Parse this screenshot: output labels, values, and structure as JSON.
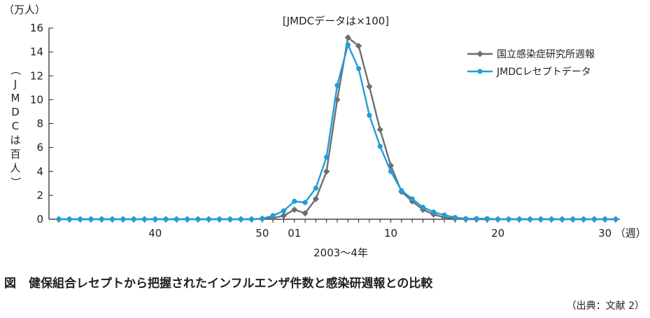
{
  "chart_data": {
    "type": "line",
    "annotation": "[JMDCデータは×100]",
    "y_unit_label": "（万人）",
    "y_secondary_label": "（JMDCは百人）",
    "x_axis_label": "2003〜4年",
    "x_unit_label": "（週）",
    "ylim": [
      0,
      16
    ],
    "y_ticks": [
      "0",
      "2",
      "4",
      "6",
      "8",
      "10",
      "12",
      "14",
      "16"
    ],
    "x_tick_labels": [
      {
        "week_index": 9,
        "label": "40"
      },
      {
        "week_index": 19,
        "label": "50"
      },
      {
        "week_index": 22,
        "label": "01"
      },
      {
        "week_index": 31,
        "label": "10"
      },
      {
        "week_index": 41,
        "label": "20"
      },
      {
        "week_index": 51,
        "label": "30"
      }
    ],
    "x_count": 53,
    "grid": false,
    "legend_position": "top-right",
    "series": [
      {
        "name": "国立感染症研究所週報",
        "color": "#6d6e71",
        "marker": "diamond",
        "values": [
          0,
          0,
          0,
          0,
          0,
          0,
          0,
          0,
          0,
          0,
          0,
          0,
          0,
          0,
          0,
          0,
          0,
          0,
          0,
          0.05,
          0.1,
          0.3,
          0.8,
          0.5,
          1.7,
          4.0,
          10.0,
          15.2,
          14.5,
          11.1,
          7.5,
          4.5,
          2.3,
          1.5,
          0.8,
          0.4,
          0.15,
          0.05,
          0,
          0,
          0,
          0,
          0,
          0,
          0,
          0,
          0,
          0,
          0,
          0,
          0,
          0,
          0
        ]
      },
      {
        "name": "JMDCレセプトデータ",
        "color": "#1f9ed8",
        "marker": "circle",
        "values": [
          0,
          0,
          0,
          0,
          0,
          0,
          0,
          0,
          0,
          0,
          0,
          0,
          0,
          0,
          0,
          0,
          0,
          0,
          0,
          0.05,
          0.3,
          0.7,
          1.5,
          1.4,
          2.6,
          5.2,
          11.2,
          14.6,
          12.6,
          8.7,
          6.1,
          4.0,
          2.4,
          1.7,
          1.0,
          0.6,
          0.35,
          0.15,
          0.05,
          0.05,
          0.05,
          0,
          0,
          0,
          0,
          0,
          0,
          0,
          0,
          0,
          0,
          0,
          0
        ]
      }
    ]
  },
  "caption": {
    "figure_label": "図",
    "title": "健保組合レセプトから把握されたインフルエンザ件数と感染研週報との比較"
  },
  "source": "（出典：文献 2）"
}
